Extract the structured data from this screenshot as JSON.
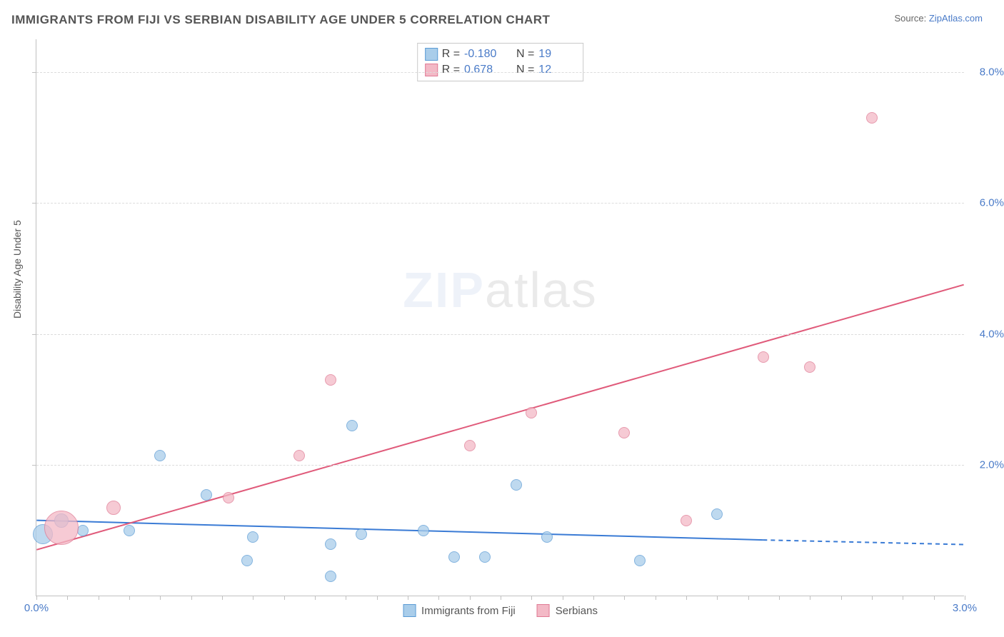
{
  "title": "IMMIGRANTS FROM FIJI VS SERBIAN DISABILITY AGE UNDER 5 CORRELATION CHART",
  "source_prefix": "Source: ",
  "source_link": "ZipAtlas.com",
  "ylabel": "Disability Age Under 5",
  "watermark_bold": "ZIP",
  "watermark_rest": "atlas",
  "chart": {
    "type": "scatter",
    "x_range": [
      0.0,
      3.0
    ],
    "y_range": [
      0.0,
      8.5
    ],
    "x_ticks": [
      0.0,
      3.0
    ],
    "y_ticks": [
      2.0,
      4.0,
      6.0,
      8.0
    ],
    "x_tick_format": "pct1",
    "y_tick_format": "pct1",
    "grid_color": "#dcdcdc",
    "background": "#ffffff",
    "series": [
      {
        "key": "fiji",
        "label": "Immigrants from Fiji",
        "fill": "#a9cdea",
        "stroke": "#5b9bd5",
        "stats": {
          "R": "-0.180",
          "N": "19"
        },
        "points": [
          {
            "x": 0.02,
            "y": 0.95,
            "r": 14
          },
          {
            "x": 0.08,
            "y": 1.15,
            "r": 10
          },
          {
            "x": 0.15,
            "y": 1.0,
            "r": 8
          },
          {
            "x": 0.3,
            "y": 1.0,
            "r": 8
          },
          {
            "x": 0.4,
            "y": 2.15,
            "r": 8
          },
          {
            "x": 0.55,
            "y": 1.55,
            "r": 8
          },
          {
            "x": 0.68,
            "y": 0.55,
            "r": 8
          },
          {
            "x": 0.7,
            "y": 0.9,
            "r": 8
          },
          {
            "x": 0.95,
            "y": 0.3,
            "r": 8
          },
          {
            "x": 0.95,
            "y": 0.8,
            "r": 8
          },
          {
            "x": 1.02,
            "y": 2.6,
            "r": 8
          },
          {
            "x": 1.05,
            "y": 0.95,
            "r": 8
          },
          {
            "x": 1.25,
            "y": 1.0,
            "r": 8
          },
          {
            "x": 1.35,
            "y": 0.6,
            "r": 8
          },
          {
            "x": 1.45,
            "y": 0.6,
            "r": 8
          },
          {
            "x": 1.55,
            "y": 1.7,
            "r": 8
          },
          {
            "x": 1.65,
            "y": 0.9,
            "r": 8
          },
          {
            "x": 1.95,
            "y": 0.55,
            "r": 8
          },
          {
            "x": 2.2,
            "y": 1.25,
            "r": 8
          }
        ],
        "trend": {
          "x1": 0.0,
          "y1": 1.15,
          "x2": 2.35,
          "y2": 0.85,
          "extend_x2": 3.0,
          "extend_y2": 0.78,
          "color": "#3a7bd5",
          "width": 2
        }
      },
      {
        "key": "serbians",
        "label": "Serbians",
        "fill": "#f3b9c6",
        "stroke": "#e07a94",
        "stats": {
          "R": "0.678",
          "N": "12"
        },
        "points": [
          {
            "x": 0.08,
            "y": 1.05,
            "r": 24
          },
          {
            "x": 0.25,
            "y": 1.35,
            "r": 10
          },
          {
            "x": 0.62,
            "y": 1.5,
            "r": 8
          },
          {
            "x": 0.85,
            "y": 2.15,
            "r": 8
          },
          {
            "x": 0.95,
            "y": 3.3,
            "r": 8
          },
          {
            "x": 1.4,
            "y": 2.3,
            "r": 8
          },
          {
            "x": 1.6,
            "y": 2.8,
            "r": 8
          },
          {
            "x": 1.9,
            "y": 2.5,
            "r": 8
          },
          {
            "x": 2.1,
            "y": 1.15,
            "r": 8
          },
          {
            "x": 2.35,
            "y": 3.65,
            "r": 8
          },
          {
            "x": 2.5,
            "y": 3.5,
            "r": 8
          },
          {
            "x": 2.7,
            "y": 7.3,
            "r": 8
          }
        ],
        "trend": {
          "x1": 0.0,
          "y1": 0.7,
          "x2": 3.0,
          "y2": 4.75,
          "color": "#e05a7a",
          "width": 2
        }
      }
    ],
    "legend_stats": {
      "label_R": "R =",
      "label_N": "N ="
    }
  }
}
